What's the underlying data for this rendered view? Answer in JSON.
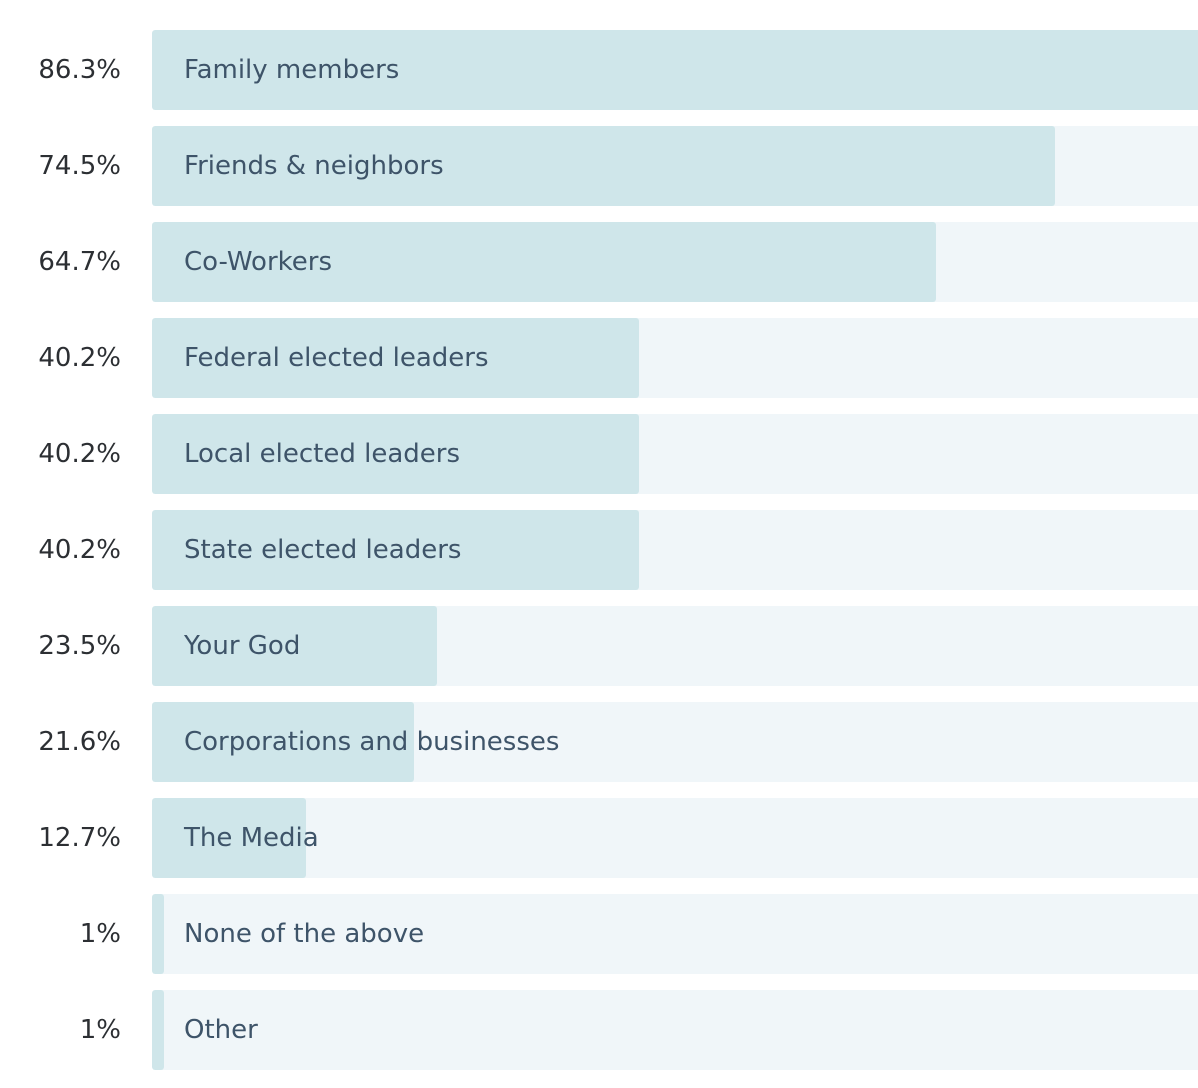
{
  "chart_data": {
    "type": "bar",
    "orientation": "horizontal",
    "categories": [
      "Family members",
      "Friends & neighbors",
      "Co-Workers",
      "Federal elected leaders",
      "Local elected leaders",
      "State elected leaders",
      "Your God",
      "Corporations and businesses",
      "The Media",
      "None of the above",
      "Other"
    ],
    "values": [
      86.3,
      74.5,
      64.7,
      40.2,
      40.2,
      40.2,
      23.5,
      21.6,
      12.7,
      1,
      1
    ],
    "value_labels": [
      "86.3%",
      "74.5%",
      "64.7%",
      "40.2%",
      "40.2%",
      "40.2%",
      "23.5%",
      "21.6%",
      "12.7%",
      "1%",
      "1%"
    ],
    "xlim": [
      0,
      86.3
    ],
    "colors": {
      "fill": "#cfe6ea",
      "track": "#f0f6f9",
      "label": "#3e5469",
      "value": "#2c2f33"
    }
  }
}
